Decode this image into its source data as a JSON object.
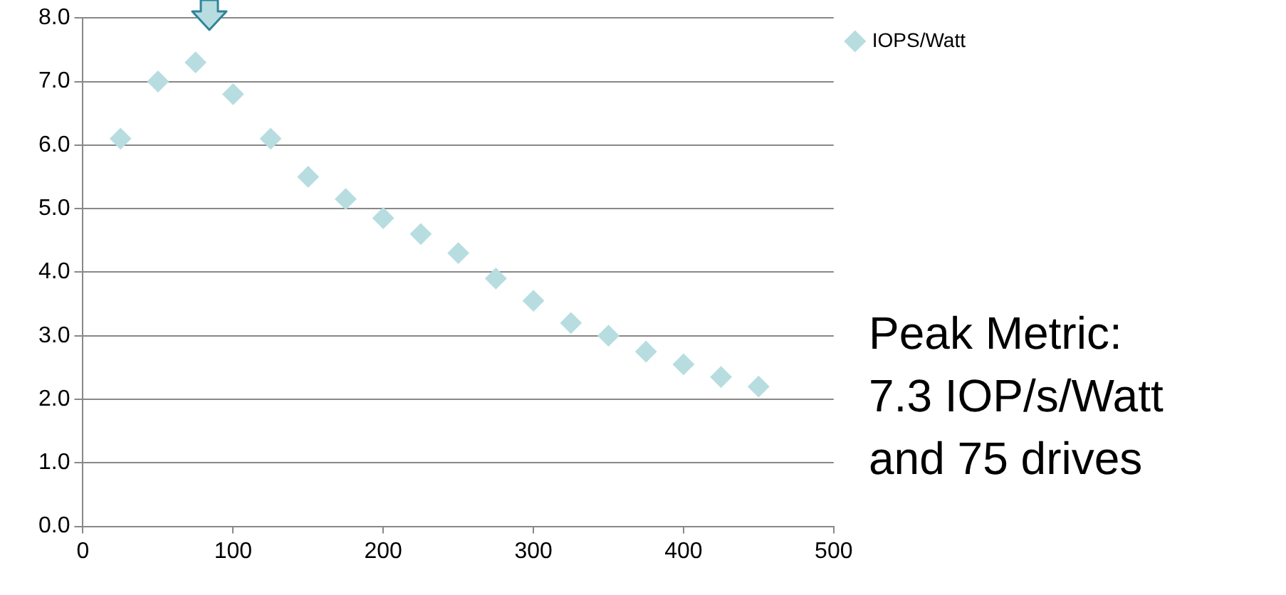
{
  "chart_data": {
    "type": "scatter",
    "x": [
      25,
      50,
      75,
      100,
      125,
      150,
      175,
      200,
      225,
      250,
      275,
      300,
      325,
      350,
      375,
      400,
      425,
      450
    ],
    "series": [
      {
        "name": "IOPS/Watt",
        "color": "#b7dde0",
        "values": [
          6.1,
          7.0,
          7.3,
          6.8,
          6.1,
          5.5,
          5.15,
          4.85,
          4.6,
          4.3,
          3.9,
          3.55,
          3.2,
          3.0,
          2.75,
          2.55,
          2.35,
          2.2
        ]
      }
    ],
    "xlim": [
      0,
      500
    ],
    "xticks": [
      0,
      100,
      200,
      300,
      400,
      500
    ],
    "ylim": [
      0,
      8
    ],
    "yticks": [
      {
        "value": 0,
        "label": "0.0"
      },
      {
        "value": 1,
        "label": "1.0"
      },
      {
        "value": 2,
        "label": "2.0"
      },
      {
        "value": 3,
        "label": "3.0"
      },
      {
        "value": 4,
        "label": "4.0"
      },
      {
        "value": 5,
        "label": "5.0"
      },
      {
        "value": 6,
        "label": "6.0"
      },
      {
        "value": 7,
        "label": "7.0"
      },
      {
        "value": 8,
        "label": "8.0"
      }
    ],
    "grid": "y",
    "legend": "top right",
    "marker": "diamond",
    "annotations": [
      "Peak Metric:\n7.3 IOP/s/Watt\nand 75 drives"
    ]
  }
}
